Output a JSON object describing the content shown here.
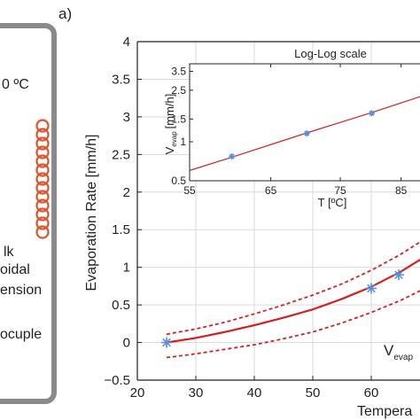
{
  "panel_label": "a)",
  "schematic": {
    "labels": [
      {
        "id": "temp",
        "text": "0 ºC"
      },
      {
        "id": "bulk1",
        "text": "lk"
      },
      {
        "id": "bulk2",
        "text": "oidal"
      },
      {
        "id": "bulk3",
        "text": "ension"
      },
      {
        "id": "thermo",
        "text": "ocuple"
      }
    ],
    "colors": {
      "frame": "#8a8a8a",
      "coil": "#e0522a"
    }
  },
  "chart_data": [
    {
      "type": "line",
      "title": "",
      "xlabel": "Tempera",
      "ylabel": "Evaporation Rate [mm/h]",
      "xlim": [
        20,
        70
      ],
      "ylim": [
        -0.5,
        4
      ],
      "xticks": [
        "20",
        "30",
        "40",
        "50",
        "60"
      ],
      "yticks": [
        "−0.5",
        "0",
        "0.5",
        "1",
        "1.5",
        "2",
        "2.5",
        "3",
        "3.5",
        "4"
      ],
      "grid": true,
      "annotation": {
        "main": "V",
        "sub": "evap"
      },
      "points": {
        "name": "measured",
        "x": [
          25,
          60,
          64.7
        ],
        "y": [
          0.0,
          0.72,
          0.9
        ],
        "color": "#5b8fd6"
      },
      "fit": {
        "x": [
          25,
          30,
          35,
          40,
          45,
          50,
          55,
          60,
          65,
          70
        ],
        "y": [
          0.0,
          0.06,
          0.14,
          0.23,
          0.33,
          0.44,
          0.58,
          0.74,
          0.94,
          1.18
        ],
        "color": "#d42020"
      },
      "band_upper": {
        "x": [
          25,
          30,
          35,
          40,
          45,
          50,
          55,
          60,
          65,
          70
        ],
        "y": [
          0.11,
          0.18,
          0.27,
          0.38,
          0.5,
          0.63,
          0.78,
          0.96,
          1.17,
          1.42
        ]
      },
      "band_lower": {
        "x": [
          25,
          30,
          35,
          40,
          45,
          50,
          55,
          60,
          65,
          70
        ],
        "y": [
          -0.2,
          -0.15,
          -0.09,
          -0.03,
          0.05,
          0.14,
          0.26,
          0.4,
          0.56,
          0.75
        ]
      }
    },
    {
      "type": "line",
      "title": "Log-Log scale",
      "xlabel": "T [ºC]",
      "ylabel": "V evap [mm/h]",
      "ylabel_main": "V",
      "ylabel_sub": "evap",
      "ylabel_unit": "[mm/h]",
      "xscale": "log",
      "yscale": "log",
      "xlim": [
        55,
        90
      ],
      "ylim": [
        0.5,
        4
      ],
      "xticks": [
        "55",
        "65",
        "75",
        "85"
      ],
      "yticks": [
        "0.5",
        "1",
        "1.5",
        "2.5",
        "3.5"
      ],
      "grid": false,
      "points": {
        "x": [
          60,
          70,
          80
        ],
        "y": [
          0.77,
          1.16,
          1.66
        ],
        "color": "#5b8fd6"
      },
      "fit": {
        "x": [
          55,
          60,
          70,
          80,
          90
        ],
        "y": [
          0.6,
          0.76,
          1.17,
          1.68,
          2.35
        ],
        "color": "#d42020"
      }
    }
  ]
}
